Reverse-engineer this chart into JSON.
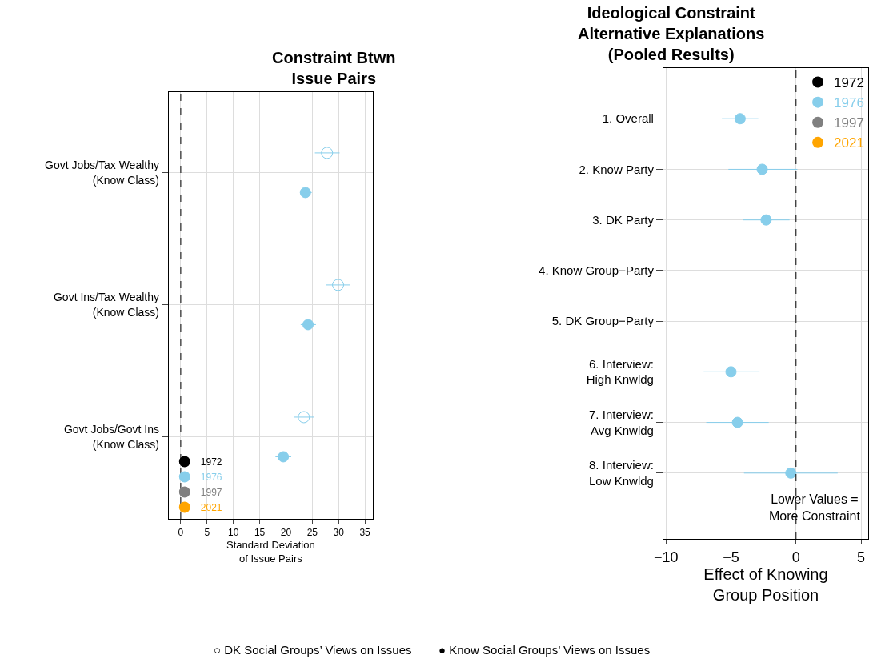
{
  "chart_data": [
    {
      "type": "scatter",
      "orientation": "horizontal",
      "title": "Constraint Btwn\nIssue Pairs",
      "xlabel": "Standard Deviation\nof Issue Pairs",
      "categories": [
        "Govt Jobs/Tax Wealthy\n(Know Class)",
        "Govt Ins/Tax Wealthy\n(Know Class)",
        "Govt Jobs/Govt Ins\n(Know Class)"
      ],
      "series": [
        {
          "name": "1972",
          "color": "#000000",
          "values": [
            null,
            null,
            null
          ]
        },
        {
          "name": "1976",
          "color": "#87ceeb",
          "values": [
            23.7,
            24.2,
            19.5
          ],
          "errors": [
            [
              22.7,
              24.9
            ],
            [
              22.8,
              25.7
            ],
            [
              18.0,
              21.0
            ]
          ]
        },
        {
          "color": "#87ceeb",
          "marker": "circle-open",
          "values": [
            27.8,
            29.9,
            23.4
          ],
          "errors": [
            [
              25.5,
              30.2
            ],
            [
              27.6,
              32.1
            ],
            [
              21.6,
              25.4
            ]
          ]
        },
        {
          "name": "1997",
          "color": "#808080",
          "values": [
            null,
            null,
            null
          ]
        },
        {
          "name": "2021",
          "color": "#ffa500",
          "values": [
            null,
            null,
            null
          ]
        }
      ],
      "xlim": [
        -2.3,
        36.5
      ],
      "xticks": [
        0,
        5,
        10,
        15,
        20,
        25,
        30,
        35
      ],
      "ref_lines": [
        {
          "axis": "x",
          "value": 0,
          "color": "#000000",
          "line_style": "dashed"
        }
      ],
      "grid": true,
      "legend": "bottom left",
      "marker": "circle",
      "annotations": [
        "○ DK Social Groups’ Views on Issues",
        "● Know Social Groups’ Views on Issues"
      ]
    },
    {
      "type": "scatter",
      "orientation": "horizontal",
      "title": "Ideological Constraint\nAlternative Explanations\n(Pooled Results)",
      "xlabel": "Effect of Knowing\nGroup Position",
      "categories": [
        "1. Overall",
        "2. Know Party",
        "3. DK Party",
        "4. Know Group−Party",
        "5. DK Group−Party",
        "6. Interview:\nHigh Knwldg",
        "7. Interview:\nAvg Knwldg",
        "8. Interview:\nLow Knwldg"
      ],
      "series": [
        {
          "name": "1972",
          "color": "#000000",
          "values": [
            null,
            null,
            null,
            null,
            null,
            null,
            null,
            null
          ]
        },
        {
          "name": "1976",
          "color": "#87ceeb",
          "values": [
            -4.3,
            -2.6,
            -2.3,
            null,
            null,
            -5.0,
            -4.5,
            -0.4
          ],
          "errors": [
            [
              -5.7,
              -2.9
            ],
            [
              -5.2,
              0.1
            ],
            [
              -4.1,
              -0.5
            ],
            null,
            null,
            [
              -7.1,
              -2.8
            ],
            [
              -6.9,
              -2.1
            ],
            [
              -4.0,
              3.2
            ]
          ]
        },
        {
          "name": "1997",
          "color": "#808080",
          "values": [
            null,
            null,
            null,
            null,
            null,
            null,
            null,
            null
          ]
        },
        {
          "name": "2021",
          "color": "#ffa500",
          "values": [
            null,
            null,
            null,
            null,
            null,
            null,
            null,
            null
          ]
        }
      ],
      "xlim": [
        -10.2,
        5.55
      ],
      "xticks": [
        {
          "value": -10,
          "label": "−10"
        },
        {
          "value": -5,
          "label": "−5"
        },
        0,
        5
      ],
      "ref_lines": [
        {
          "axis": "x",
          "value": 0,
          "color": "#000000",
          "line_style": "dashed"
        }
      ],
      "grid": true,
      "legend": "top right",
      "marker": "circle",
      "annotations": [
        "Lower Values =\nMore Constraint"
      ]
    }
  ]
}
